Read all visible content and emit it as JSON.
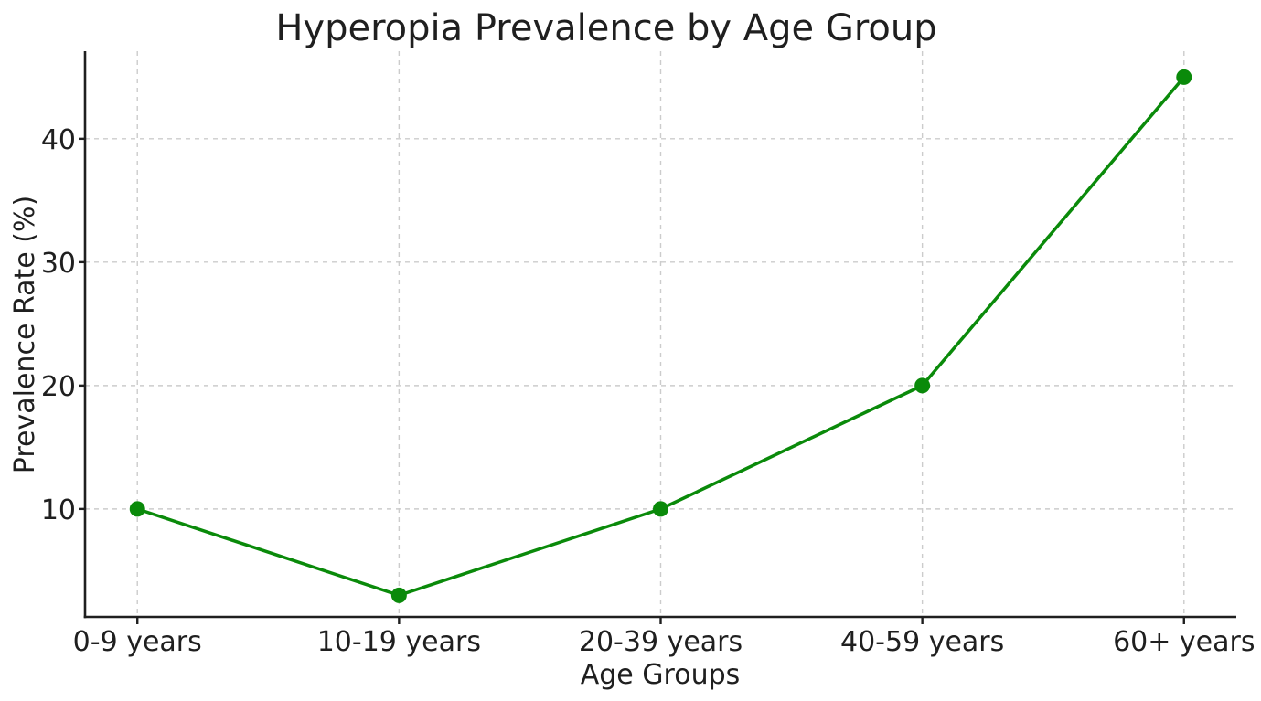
{
  "chart_data": {
    "type": "line",
    "title": "Hyperopia Prevalence by Age Group",
    "xlabel": "Age Groups",
    "ylabel": "Prevalence Rate (%)",
    "categories": [
      "0-9 years",
      "10-19 years",
      "20-39 years",
      "40-59 years",
      "60+ years"
    ],
    "values": [
      10,
      3,
      10,
      20,
      45
    ],
    "yticks": [
      10,
      20,
      30,
      40
    ],
    "ylim": [
      1.25,
      47.1
    ],
    "grid": true,
    "grid_style": "dashed",
    "legend": "none",
    "marker": "circle",
    "colors": {
      "line": "#0a8a0a",
      "marker": "#0a8a0a",
      "grid": "#cccccc",
      "axis": "#1f1f1f",
      "text": "#1f1f1f",
      "background": "#ffffff"
    }
  }
}
